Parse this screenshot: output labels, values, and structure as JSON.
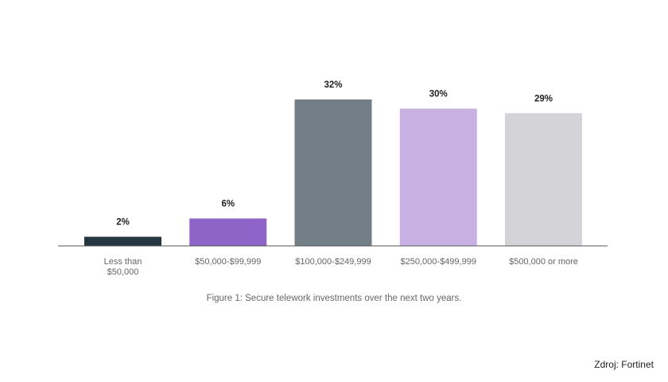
{
  "chart_data": {
    "type": "bar",
    "categories": [
      [
        "Less than",
        "$50,000"
      ],
      [
        "$50,000-$99,999"
      ],
      [
        "$100,000-$249,999"
      ],
      [
        "$250,000-$499,999"
      ],
      [
        "$500,000 or more"
      ]
    ],
    "values": [
      2,
      6,
      32,
      30,
      29
    ],
    "data_labels": [
      "2%",
      "6%",
      "32%",
      "30%",
      "29%"
    ],
    "colors": [
      "#243642",
      "#8f64c8",
      "#747e87",
      "#c8b0e3",
      "#d4d4d8"
    ],
    "ylim": [
      0,
      32
    ],
    "grid": false,
    "legend": "none"
  },
  "caption": "Figure 1: Secure telework investments over the next two years.",
  "source": "Zdroj: Fortinet"
}
